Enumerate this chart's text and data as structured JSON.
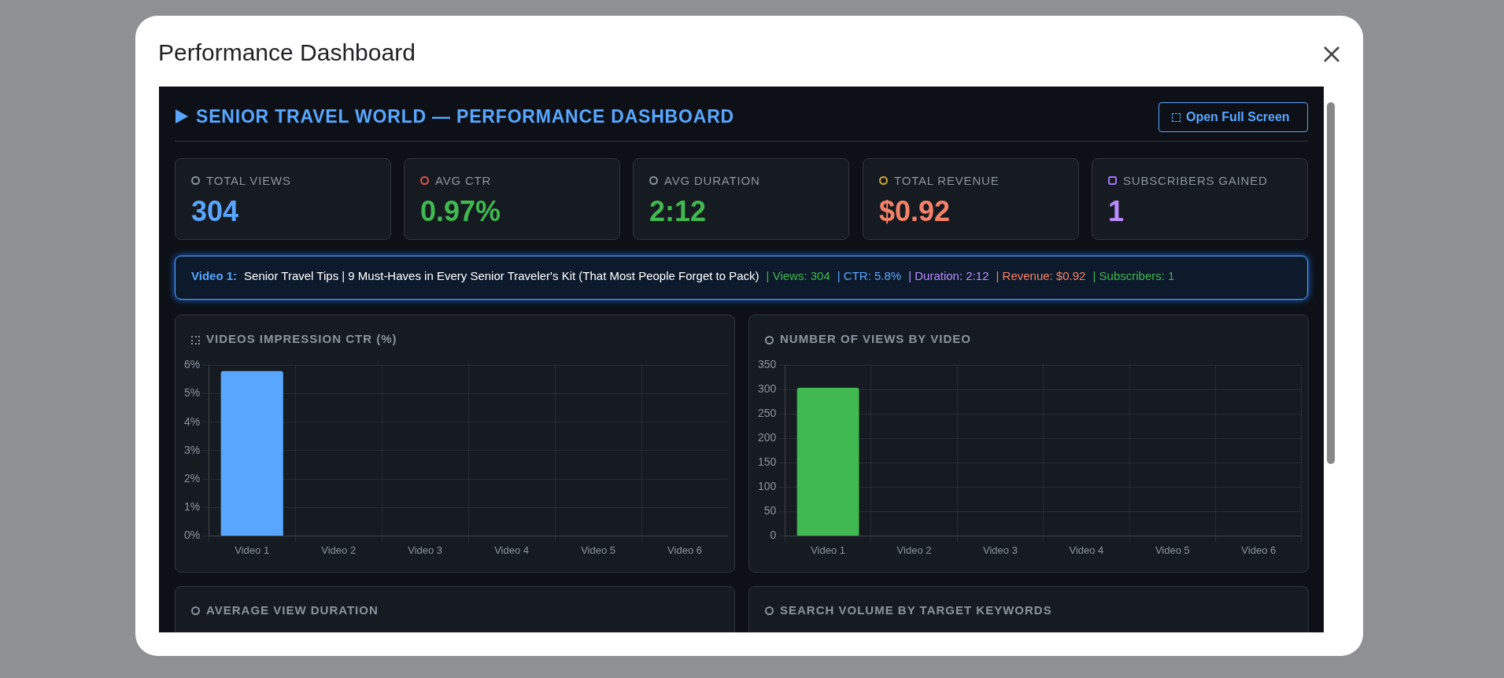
{
  "chart_data": [
    {
      "type": "other",
      "title": "SENIOR TRAVEL WORLD — PERFORMANCE DASHBOARD",
      "annotations": [
        "Performance Dashboard",
        "Open Full Screen",
        "TOTAL VIEWS",
        "304",
        "AVG CTR",
        "0.97%",
        "AVG DURATION",
        "2:12",
        "TOTAL REVENUE",
        "$0.92",
        "SUBSCRIBERS GAINED",
        "1",
        "Video 1:",
        "Senior Travel Tips | 9 Must-Haves in Every Senior Traveler's Kit (That Most People Forget to Pack)",
        "|  Views: 304",
        "|  CTR: 5.8%",
        "|  Duration: 2:12",
        "|  Revenue: $0.92",
        "|  Subscribers: 1"
      ]
    },
    {
      "type": "bar",
      "title": "VIDEOS IMPRESSION CTR (%)",
      "categories": [
        "Video 1",
        "Video 2",
        "Video 3",
        "Video 4",
        "Video 5",
        "Video 6"
      ],
      "values": [
        5.8,
        0,
        0,
        0,
        0,
        0
      ],
      "color": "#58a6ff",
      "ylim": [
        0,
        6
      ],
      "yticks": [
        {
          "value": 0,
          "label": "0%"
        },
        {
          "value": 1,
          "label": "1%"
        },
        {
          "value": 2,
          "label": "2%"
        },
        {
          "value": 3,
          "label": "3%"
        },
        {
          "value": 4,
          "label": "4%"
        },
        {
          "value": 5,
          "label": "5%"
        },
        {
          "value": 6,
          "label": "6%"
        }
      ],
      "grid": true
    },
    {
      "type": "bar",
      "title": "NUMBER OF VIEWS BY VIDEO",
      "categories": [
        "Video 1",
        "Video 2",
        "Video 3",
        "Video 4",
        "Video 5",
        "Video 6"
      ],
      "values": [
        304,
        0,
        0,
        0,
        0,
        0
      ],
      "color": "#3fb950",
      "ylim": [
        0,
        350
      ],
      "yticks": [
        0,
        50,
        100,
        150,
        200,
        250,
        300,
        350
      ],
      "grid": true
    },
    {
      "type": "other",
      "annotations": [
        "AVERAGE VIEW DURATION",
        "SEARCH VOLUME BY TARGET KEYWORDS"
      ]
    }
  ]
}
